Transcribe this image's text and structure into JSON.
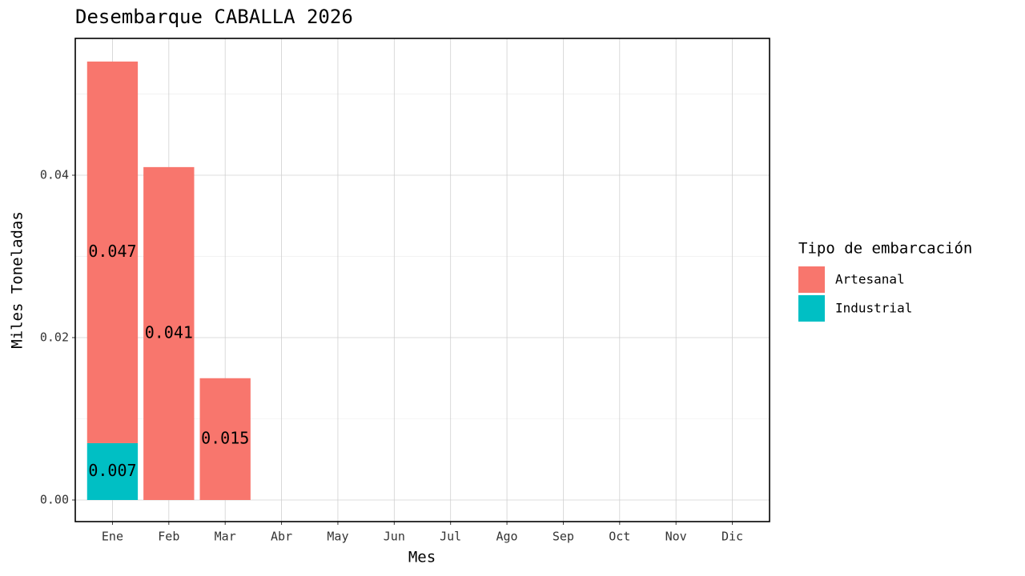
{
  "chart_data": {
    "type": "bar",
    "stacked": true,
    "title": "Desembarque CABALLA 2026",
    "x_label": "Mes",
    "y_label": "Miles Toneladas",
    "legend_title": "Tipo de embarcación",
    "legend_position": "right",
    "categories": [
      "Ene",
      "Feb",
      "Mar",
      "Abr",
      "May",
      "Jun",
      "Jul",
      "Ago",
      "Sep",
      "Oct",
      "Nov",
      "Dic"
    ],
    "series": [
      {
        "name": "Artesanal",
        "color": "#f8766d",
        "values": [
          0.047,
          0.041,
          0.015,
          null,
          null,
          null,
          null,
          null,
          null,
          null,
          null,
          null
        ]
      },
      {
        "name": "Industrial",
        "color": "#00bfc4",
        "values": [
          0.007,
          null,
          null,
          null,
          null,
          null,
          null,
          null,
          null,
          null,
          null,
          null
        ]
      }
    ],
    "ylim": [
      -0.00266,
      0.05685
    ],
    "yticks": [
      {
        "value": 0,
        "label": "0.00"
      },
      {
        "value": 0.02,
        "label": "0.02"
      },
      {
        "value": 0.04,
        "label": "0.04"
      }
    ],
    "minor_yticks": [
      0.01,
      0.03,
      0.05
    ],
    "grid": true
  }
}
